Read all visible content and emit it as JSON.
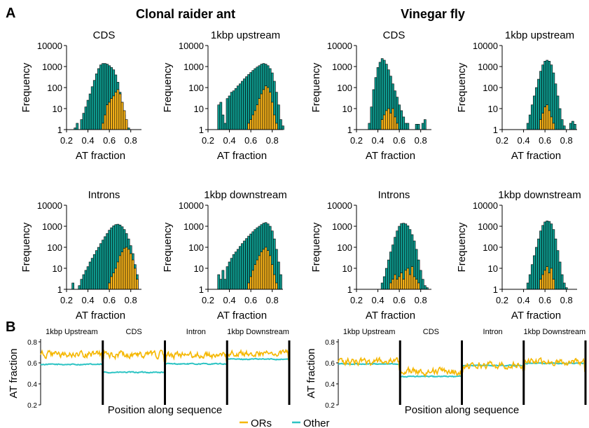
{
  "panel_a_label": "A",
  "panel_b_label": "B",
  "species": [
    "Clonal raider ant",
    "Vinegar fly"
  ],
  "legend": {
    "items": [
      {
        "name": "ORs",
        "color": "#f5b700"
      },
      {
        "name": "Other",
        "color": "#2ec4c4"
      }
    ]
  },
  "colors": {
    "other_bar": "#0e9a8e",
    "or_bar": "#f5b21a",
    "bar_outline": "#000000",
    "or_line": "#f5b700",
    "other_line": "#2ec4c4"
  },
  "chart_data": [
    {
      "type": "bar",
      "log_scale_y": true,
      "species": "Clonal raider ant",
      "title": "CDS",
      "xlabel": "AT fraction",
      "ylabel": "Frequency",
      "xlim": [
        0.2,
        0.9
      ],
      "ylim": [
        1,
        10000
      ],
      "xticks": [
        "0.2",
        "0.4",
        "0.6",
        "0.8"
      ],
      "yticks": [
        "1",
        "10",
        "100",
        "1000",
        "10000"
      ],
      "other": {
        "start": 0.27,
        "width": 0.02,
        "values": [
          1.2,
          2,
          1,
          3,
          6,
          12,
          25,
          50,
          110,
          220,
          450,
          800,
          1200,
          1400,
          1400,
          1300,
          1100,
          900,
          700,
          400,
          180,
          60,
          20,
          5,
          2,
          1.2
        ]
      },
      "ors": {
        "start": 0.53,
        "width": 0.02,
        "values": [
          2,
          5,
          15,
          20,
          30,
          40,
          60,
          80,
          50,
          20,
          8,
          3
        ]
      }
    },
    {
      "type": "bar",
      "log_scale_y": true,
      "species": "Clonal raider ant",
      "title": "1kbp upstream",
      "xlabel": "AT fraction",
      "ylabel": "Frequency",
      "xlim": [
        0.2,
        0.9
      ],
      "ylim": [
        1,
        10000
      ],
      "xticks": [
        "0.2",
        "0.4",
        "0.6",
        "0.8"
      ],
      "yticks": [
        "1",
        "10",
        "100",
        "1000",
        "10000"
      ],
      "other": {
        "start": 0.29,
        "width": 0.02,
        "values": [
          15,
          20,
          5,
          2,
          30,
          40,
          60,
          70,
          90,
          120,
          150,
          200,
          260,
          330,
          420,
          520,
          650,
          800,
          950,
          1100,
          1300,
          1400,
          1300,
          1100,
          800,
          500,
          200,
          60,
          15,
          3,
          1.5
        ]
      },
      "ors": {
        "start": 0.57,
        "width": 0.02,
        "values": [
          2,
          3,
          5,
          8,
          15,
          30,
          50,
          80,
          120,
          100,
          60,
          20,
          5,
          2
        ]
      }
    },
    {
      "type": "bar",
      "log_scale_y": true,
      "species": "Vinegar fly",
      "title": "CDS",
      "xlabel": "AT fraction",
      "ylabel": "Frequency",
      "xlim": [
        0.2,
        0.9
      ],
      "ylim": [
        1,
        10000
      ],
      "xticks": [
        "0.2",
        "0.4",
        "0.6",
        "0.8"
      ],
      "yticks": [
        "1",
        "10",
        "100",
        "1000",
        "10000"
      ],
      "other": {
        "start": 0.31,
        "width": 0.02,
        "values": [
          2,
          12,
          80,
          300,
          900,
          1600,
          2400,
          2000,
          1300,
          700,
          350,
          150,
          70,
          35,
          15,
          8,
          4,
          2,
          2,
          1,
          1,
          1,
          1.8,
          1.8,
          1,
          2,
          3
        ]
      },
      "ors": {
        "start": 0.43,
        "width": 0.02,
        "values": [
          3,
          5,
          8,
          10,
          6,
          10,
          4,
          2
        ]
      }
    },
    {
      "type": "bar",
      "log_scale_y": true,
      "species": "Vinegar fly",
      "title": "1kbp upstream",
      "xlabel": "AT fraction",
      "ylabel": "Frequency",
      "xlim": [
        0.2,
        0.9
      ],
      "ylim": [
        1,
        10000
      ],
      "xticks": [
        "0.2",
        "0.4",
        "0.6",
        "0.8"
      ],
      "yticks": [
        "1",
        "10",
        "100",
        "1000",
        "10000"
      ],
      "other": {
        "start": 0.43,
        "width": 0.02,
        "values": [
          2,
          5,
          15,
          40,
          100,
          250,
          600,
          1200,
          1800,
          2000,
          1800,
          1200,
          500,
          150,
          40,
          10,
          3,
          1.5,
          1,
          1,
          2,
          2.5,
          1.8
        ]
      },
      "ors": {
        "start": 0.55,
        "width": 0.02,
        "values": [
          3,
          6,
          12,
          15,
          8,
          4,
          2
        ]
      }
    },
    {
      "type": "bar",
      "log_scale_y": true,
      "species": "Clonal raider ant",
      "title": "Introns",
      "xlabel": "AT fraction",
      "ylabel": "Frequency",
      "xlim": [
        0.2,
        0.9
      ],
      "ylim": [
        1,
        10000
      ],
      "xticks": [
        "0.2",
        "0.4",
        "0.6",
        "0.8"
      ],
      "yticks": [
        "1",
        "10",
        "100",
        "1000",
        "10000"
      ],
      "other": {
        "start": 0.25,
        "width": 0.02,
        "values": [
          2,
          1,
          1,
          1.5,
          3,
          5,
          8,
          12,
          20,
          30,
          45,
          70,
          100,
          150,
          220,
          320,
          450,
          650,
          850,
          1050,
          1200,
          1250,
          1150,
          950,
          700,
          450,
          250,
          120,
          50,
          15,
          5
        ]
      },
      "ors": {
        "start": 0.59,
        "width": 0.02,
        "values": [
          2,
          4,
          6,
          10,
          20,
          40,
          60,
          90,
          100,
          80,
          50,
          25,
          10,
          3
        ]
      }
    },
    {
      "type": "bar",
      "log_scale_y": true,
      "species": "Clonal raider ant",
      "title": "1kbp downstream",
      "xlabel": "AT fraction",
      "ylabel": "Frequency",
      "xlim": [
        0.2,
        0.9
      ],
      "ylim": [
        1,
        10000
      ],
      "xticks": [
        "0.2",
        "0.4",
        "0.6",
        "0.8"
      ],
      "yticks": [
        "1",
        "10",
        "100",
        "1000",
        "10000"
      ],
      "other": {
        "start": 0.29,
        "width": 0.02,
        "values": [
          5,
          3,
          8,
          3,
          12,
          20,
          30,
          45,
          60,
          80,
          110,
          150,
          200,
          260,
          340,
          430,
          550,
          700,
          850,
          1000,
          1200,
          1400,
          1500,
          1300,
          1000,
          600,
          250,
          80,
          20,
          5
        ]
      },
      "ors": {
        "start": 0.57,
        "width": 0.02,
        "values": [
          2,
          4,
          8,
          15,
          25,
          40,
          60,
          80,
          100,
          70,
          40,
          15,
          5,
          2
        ]
      }
    },
    {
      "type": "bar",
      "log_scale_y": true,
      "species": "Vinegar fly",
      "title": "Introns",
      "xlabel": "AT fraction",
      "ylabel": "Frequency",
      "xlim": [
        0.2,
        0.9
      ],
      "ylim": [
        1,
        10000
      ],
      "xticks": [
        "0.2",
        "0.4",
        "0.6",
        "0.8"
      ],
      "yticks": [
        "1",
        "10",
        "100",
        "1000",
        "10000"
      ],
      "other": {
        "start": 0.43,
        "width": 0.02,
        "values": [
          2,
          4,
          10,
          25,
          60,
          130,
          300,
          600,
          1000,
          1350,
          1400,
          1300,
          1050,
          700,
          400,
          200,
          80,
          25,
          8,
          3,
          1.5,
          1.2
        ]
      },
      "ors": {
        "start": 0.51,
        "width": 0.02,
        "values": [
          2,
          3,
          5,
          3,
          4,
          6,
          3,
          8,
          10,
          5,
          12,
          4,
          3,
          2
        ]
      }
    },
    {
      "type": "bar",
      "log_scale_y": true,
      "species": "Vinegar fly",
      "title": "1kbp downstream",
      "xlabel": "AT fraction",
      "ylabel": "Frequency",
      "xlim": [
        0.2,
        0.9
      ],
      "ylim": [
        1,
        10000
      ],
      "xticks": [
        "0.2",
        "0.4",
        "0.6",
        "0.8"
      ],
      "yticks": [
        "1",
        "10",
        "100",
        "1000",
        "10000"
      ],
      "other": {
        "start": 0.43,
        "width": 0.02,
        "values": [
          2,
          5,
          15,
          40,
          100,
          250,
          600,
          1100,
          1600,
          1800,
          1700,
          1300,
          700,
          250,
          70,
          20,
          5,
          2,
          1.2,
          1,
          1
        ]
      },
      "ors": {
        "start": 0.55,
        "width": 0.02,
        "values": [
          3,
          5,
          8,
          12,
          6,
          10,
          3
        ]
      }
    },
    {
      "type": "line",
      "species": "Clonal raider ant",
      "ylabel": "AT fraction",
      "xlabel": "Position along sequence",
      "ylim": [
        0.2,
        0.8
      ],
      "yticks": [
        "0.2",
        "0.4",
        "0.6",
        "0.8"
      ],
      "segments": [
        "1kbp Upstream",
        "CDS",
        "Intron",
        "1kbp Downstream"
      ],
      "series": [
        {
          "name": "ORs",
          "levels": [
            0.68,
            0.68,
            0.67,
            0.69
          ],
          "noise": 0.025
        },
        {
          "name": "Other",
          "levels": [
            0.585,
            0.51,
            0.59,
            0.635
          ],
          "noise": 0.004
        }
      ]
    },
    {
      "type": "line",
      "species": "Vinegar fly",
      "ylabel": "AT fraction",
      "xlabel": "Position along sequence",
      "ylim": [
        0.2,
        0.8
      ],
      "yticks": [
        "0.2",
        "0.4",
        "0.6",
        "0.8"
      ],
      "segments": [
        "1kbp Upstream",
        "CDS",
        "Intron",
        "1kbp Downstream"
      ],
      "series": [
        {
          "name": "ORs",
          "levels": [
            0.61,
            0.52,
            0.58,
            0.61
          ],
          "noise": 0.025
        },
        {
          "name": "Other",
          "levels": [
            0.59,
            0.47,
            0.575,
            0.595
          ],
          "noise": 0.004
        }
      ]
    }
  ]
}
